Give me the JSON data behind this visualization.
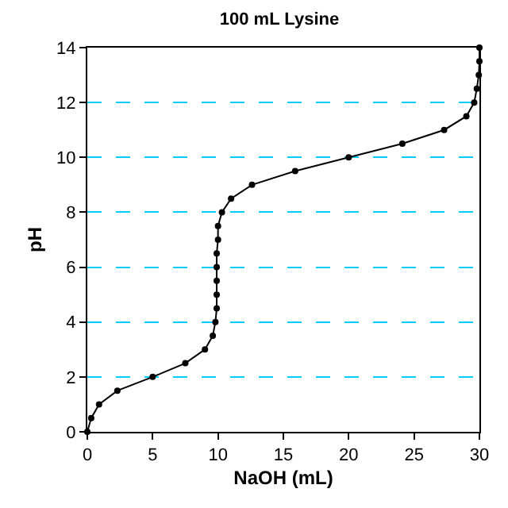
{
  "chart_data": {
    "type": "line",
    "title": "100 mL Lysine",
    "xlabel": "NaOH (mL)",
    "ylabel": "pH",
    "x": [
      0,
      0.3,
      0.9,
      2.3,
      5.0,
      7.5,
      9.0,
      9.6,
      9.8,
      9.9,
      9.9,
      9.9,
      9.9,
      9.9,
      10.0,
      10.0,
      10.3,
      11.0,
      12.6,
      15.9,
      20.0,
      24.1,
      27.3,
      29.0,
      29.6,
      29.8,
      29.95,
      30,
      30
    ],
    "series": [
      {
        "color": "#000000",
        "values": [
          0,
          0.5,
          1.0,
          1.5,
          2.0,
          2.5,
          3.0,
          3.5,
          4.0,
          4.5,
          5.0,
          5.5,
          6.0,
          6.5,
          7.0,
          7.5,
          8.0,
          8.5,
          9.0,
          9.5,
          10.0,
          10.5,
          11.0,
          11.5,
          12.0,
          12.5,
          13.0,
          13.5,
          14.0
        ]
      }
    ],
    "xlim": [
      0,
      30
    ],
    "xticks": [
      0,
      5,
      10,
      15,
      20,
      25,
      30
    ],
    "ylim": [
      0,
      14
    ],
    "yticks": [
      0,
      2,
      4,
      6,
      8,
      10,
      12,
      14
    ],
    "grid": "y",
    "marker": "circle",
    "line_style": "solid"
  }
}
